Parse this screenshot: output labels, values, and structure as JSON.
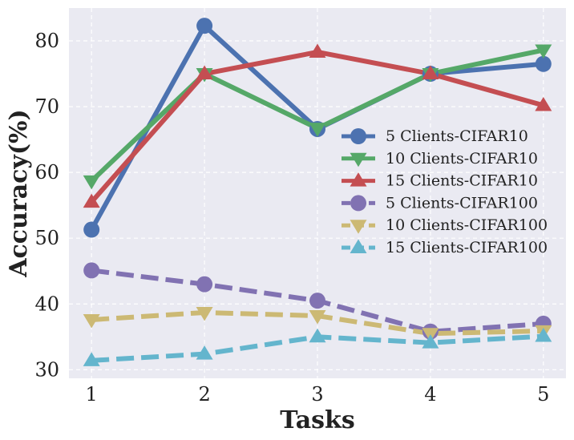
{
  "chart_data": {
    "type": "line",
    "title": "",
    "xlabel": "Tasks",
    "ylabel": "Accuracy(%)",
    "x": [
      1,
      2,
      3,
      4,
      5
    ],
    "xlim": [
      0.8,
      5.2
    ],
    "ylim": [
      28.7,
      85
    ],
    "yticks": [
      30,
      40,
      50,
      60,
      70,
      80
    ],
    "grid": true,
    "legend_position": "right",
    "series": [
      {
        "name": "5 Clients-CIFAR10",
        "values": [
          51.3,
          82.3,
          66.6,
          75.0,
          76.5
        ],
        "color": "#4c72b0",
        "marker": "circle",
        "linestyle": "solid"
      },
      {
        "name": "10 Clients-CIFAR10",
        "values": [
          58.7,
          75.0,
          66.7,
          75.0,
          78.6
        ],
        "color": "#55a868",
        "marker": "triangle-down",
        "linestyle": "solid"
      },
      {
        "name": "15 Clients-CIFAR10",
        "values": [
          55.5,
          75.0,
          78.3,
          75.0,
          70.2
        ],
        "color": "#c44e52",
        "marker": "triangle-up",
        "linestyle": "solid"
      },
      {
        "name": "5 Clients-CIFAR100",
        "values": [
          45.1,
          43.0,
          40.5,
          35.8,
          37.0
        ],
        "color": "#8172b2",
        "marker": "circle",
        "linestyle": "dashed"
      },
      {
        "name": "10 Clients-CIFAR100",
        "values": [
          37.6,
          38.7,
          38.2,
          35.5,
          35.9
        ],
        "color": "#ccb974",
        "marker": "triangle-down",
        "linestyle": "dashed"
      },
      {
        "name": "15 Clients-CIFAR100",
        "values": [
          31.4,
          32.4,
          35.0,
          34.1,
          35.1
        ],
        "color": "#64b5cd",
        "marker": "triangle-up",
        "linestyle": "dashed"
      }
    ]
  }
}
